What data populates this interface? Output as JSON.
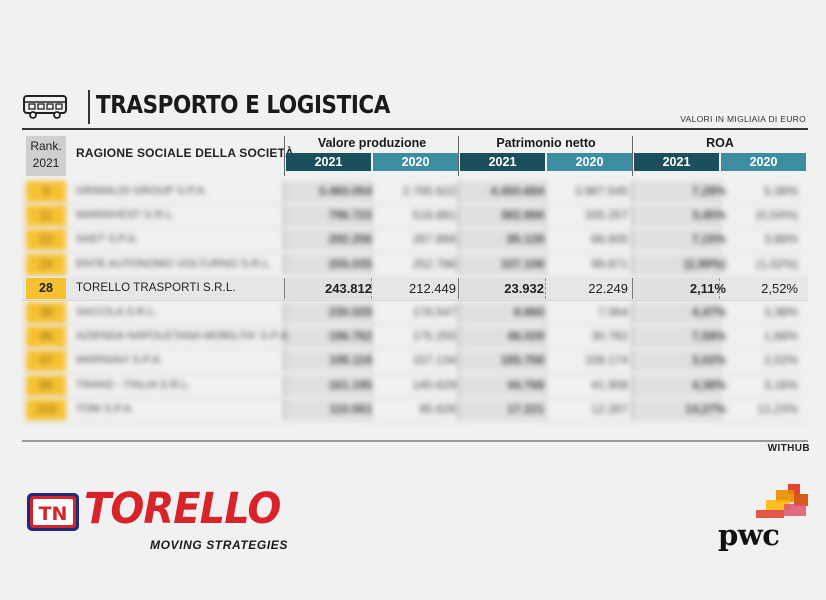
{
  "header": {
    "title": "TRASPORTO E LOGISTICA",
    "unit_note": "VALORI IN MIGLIAIA DI EURO",
    "icon": "bus-icon"
  },
  "table": {
    "rank_header": [
      "Rank.",
      "2021"
    ],
    "company_header": "RAGIONE SOCIALE DELLA SOCIETÀ",
    "groups": [
      {
        "title": "Valore produzione",
        "years": [
          "2021",
          "2020"
        ]
      },
      {
        "title": "Patrimonio netto",
        "years": [
          "2021",
          "2020"
        ]
      },
      {
        "title": "ROA",
        "years": [
          "2021",
          "2020"
        ]
      }
    ],
    "rows": [
      {
        "rank": "9",
        "company": "GRIMALDI GROUP S.P.A.",
        "vp2021": "3.460.054",
        "vp2020": "2.765.622",
        "pn2021": "4.450.684",
        "pn2020": "3.967.545",
        "roa2021": "7,28%",
        "roa2020": "5,38%",
        "blurred": true
      },
      {
        "rank": "11",
        "company": "MARINVEST S.R.L.",
        "vp2021": "796.723",
        "vp2020": "516.881",
        "pn2021": "382.866",
        "pn2020": "335.257",
        "roa2021": "3,45%",
        "roa2020": "(0,54%)",
        "blurred": true
      },
      {
        "rank": "22",
        "company": "SAET S.P.A.",
        "vp2021": "292.256",
        "vp2020": "267.866",
        "pn2021": "85.128",
        "pn2020": "66.605",
        "roa2021": "7,15%",
        "roa2020": "3,88%",
        "blurred": true
      },
      {
        "rank": "24",
        "company": "ENTE AUTONOMO VOLTURNO S.R.L.",
        "vp2021": "255.035",
        "vp2020": "252.786",
        "pn2021": "107.108",
        "pn2020": "99.871",
        "roa2021": "(2,99%)",
        "roa2020": "(1,02%)",
        "blurred": true
      },
      {
        "rank": "28",
        "company": "TORELLO TRASPORTI S.R.L.",
        "vp2021": "243.812",
        "vp2020": "212.449",
        "pn2021": "23.932",
        "pn2020": "22.249",
        "roa2021": "2,11%",
        "roa2020": "2,52%",
        "blurred": false
      },
      {
        "rank": "39",
        "company": "SACCILA S.R.L.",
        "vp2021": "230.029",
        "vp2020": "176.547",
        "pn2021": "8.860",
        "pn2020": "7.064",
        "roa2021": "4,47%",
        "roa2020": "3,38%",
        "blurred": true
      },
      {
        "rank": "46",
        "company": "AZIENDA NAPOLETANA MOBILITA' S.P.A.",
        "vp2021": "196.762",
        "vp2020": "175.255",
        "pn2021": "46.029",
        "pn2020": "30.782",
        "roa2021": "7,58%",
        "roa2020": "1,68%",
        "blurred": true
      },
      {
        "rank": "47",
        "company": "MARINAVI S.P.A.",
        "vp2021": "195.119",
        "vp2020": "157.134",
        "pn2021": "185.768",
        "pn2020": "158.174",
        "roa2021": "3,02%",
        "roa2020": "2,02%",
        "blurred": true
      },
      {
        "rank": "86",
        "company": "TRANS - ITALIA S.R.L.",
        "vp2021": "161.195",
        "vp2020": "140.629",
        "pn2021": "44.768",
        "pn2020": "41.908",
        "roa2021": "4,38%",
        "roa2020": "3,16%",
        "blurred": true
      },
      {
        "rank": "103",
        "company": "TOM S.P.A.",
        "vp2021": "110.561",
        "vp2020": "95.626",
        "pn2021": "17.221",
        "pn2020": "12.267",
        "roa2021": "14,27%",
        "roa2020": "12,23%",
        "blurred": true
      }
    ]
  },
  "source": "WITHUB",
  "logos": {
    "torello_name": "TORELLO",
    "torello_tagline": "MOVING STRATEGIES",
    "torello_emblem_text": "TN",
    "pwc_name": "pwc"
  },
  "colors": {
    "rank_yellow": "#f6c131",
    "year_dark": "#1c4f5c",
    "year_light": "#3d8da1",
    "torello_red": "#d8232a",
    "pwc_orange": "#e0301e"
  }
}
